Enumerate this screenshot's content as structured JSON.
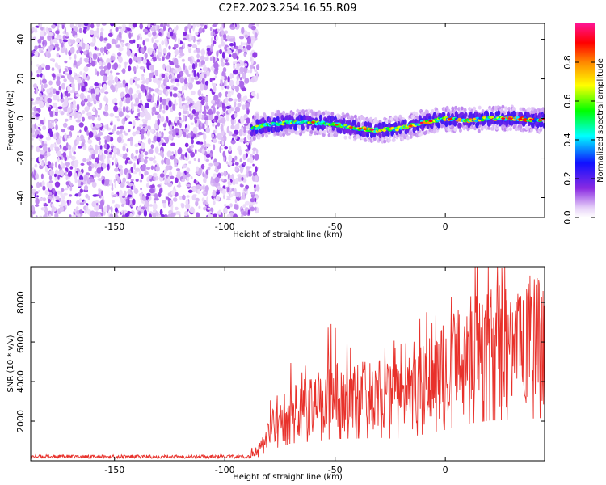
{
  "title": "C2E2.2023.254.16.55.R09",
  "chart_data": [
    {
      "type": "heatmap",
      "xlabel": "Height of straight line (km)",
      "ylabel": "Frequency (Hz)",
      "xlim": [
        -188,
        45
      ],
      "ylim": [
        -50,
        48
      ],
      "x_ticks": [
        -150,
        -100,
        -50,
        0
      ],
      "y_ticks": [
        -40,
        -20,
        0,
        20,
        40
      ],
      "colorbar": {
        "label": "Normalized spectral amplitude",
        "range": [
          0,
          1
        ],
        "ticks": [
          0.0,
          0.2,
          0.4,
          0.6,
          0.8
        ],
        "colormap": [
          "#ffffff",
          "#e6d0f8",
          "#8a2be2",
          "#1010ff",
          "#00ffff",
          "#00ff00",
          "#ffff00",
          "#ff8800",
          "#ff0000",
          "#ff1493"
        ]
      },
      "noise_region_x": [
        -188,
        -88
      ],
      "signal_track": {
        "x": [
          -88,
          -80,
          -70,
          -60,
          -50,
          -40,
          -30,
          -20,
          -10,
          0,
          10,
          20,
          30,
          45
        ],
        "frequency_hz": [
          -5,
          -3,
          -2,
          -2,
          -3,
          -5,
          -6,
          -5,
          -2,
          0,
          -1,
          0,
          0,
          -1
        ]
      }
    },
    {
      "type": "line",
      "xlabel": "Height of straight line (km)",
      "ylabel": "SNR (10 * v/v)",
      "xlim": [
        -188,
        45
      ],
      "ylim": [
        0,
        9800
      ],
      "x_ticks": [
        -150,
        -100,
        -50,
        0
      ],
      "y_ticks": [
        2000,
        4000,
        6000,
        8000
      ],
      "color": "#e8312b",
      "envelope": {
        "x": [
          -188,
          -90,
          -85,
          -80,
          -70,
          -60,
          -50,
          -40,
          -30,
          -20,
          -10,
          0,
          10,
          20,
          30,
          45
        ],
        "y": [
          200,
          200,
          500,
          1500,
          2500,
          2800,
          3200,
          3200,
          3300,
          3200,
          3800,
          4500,
          5300,
          5800,
          5900,
          6200
        ]
      }
    }
  ]
}
